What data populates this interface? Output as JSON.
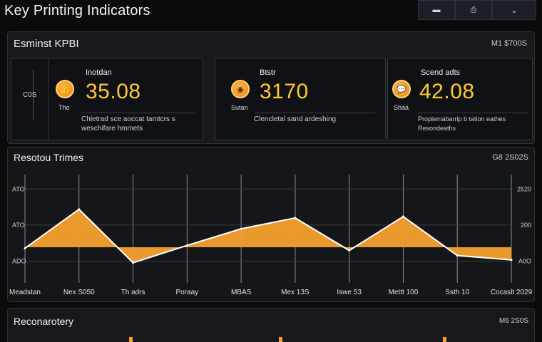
{
  "app": {
    "title": "Key Printing Indicators"
  },
  "toolbar": {
    "buttons": [
      {
        "icon": "minimize-icon",
        "glyph": "▬"
      },
      {
        "icon": "printer-icon",
        "glyph": "⎙"
      },
      {
        "icon": "expand-icon",
        "glyph": "⌄"
      }
    ]
  },
  "kpi_panel": {
    "title": "Esminst KPBI",
    "meta": "M1 $700S",
    "axis_label": "C0S",
    "cards": [
      {
        "label": "Inotdan",
        "small": "Tho",
        "value": "35.08",
        "desc": "Chletrad sce aoccat tamtcrs s\nweschifare hmmets"
      },
      {
        "label": "Btstr",
        "small": "Sutan",
        "value": "3170",
        "desc": "Clencletal sand ardeshing"
      },
      {
        "label": "Scend adts",
        "small": "Shaa",
        "value": "42.08",
        "desc": "Proplemabarrip b tation eathes\nResondeaths"
      }
    ]
  },
  "trend_panel": {
    "title": "Resotou Trimes",
    "meta": "G8 2S02S"
  },
  "bottom_panel": {
    "title": "Reconarotery",
    "meta": "M6 2S0S"
  },
  "chart_data": {
    "type": "area",
    "x": [
      "Meadstan",
      "Nex S050",
      "Th adrs",
      "Poraay",
      "MBAS",
      "Mex 13S",
      "Iswe 53",
      "Mettt 100",
      "Ssth 10",
      "Cocaslt 2029"
    ],
    "series": [
      {
        "values": [
          38,
          92,
          18,
          42,
          65,
          80,
          35,
          82,
          28,
          22
        ]
      }
    ],
    "y_ticks_left": [
      "ATO",
      "ATO",
      "ADO"
    ],
    "y_ticks_right": [
      "2520",
      "200",
      "A0O"
    ],
    "y_tick_values": [
      130,
      80,
      30
    ],
    "ylim": [
      0,
      150
    ],
    "grid": true,
    "colors": {
      "fill": "#f5a02e",
      "line": "#ffffff"
    }
  }
}
